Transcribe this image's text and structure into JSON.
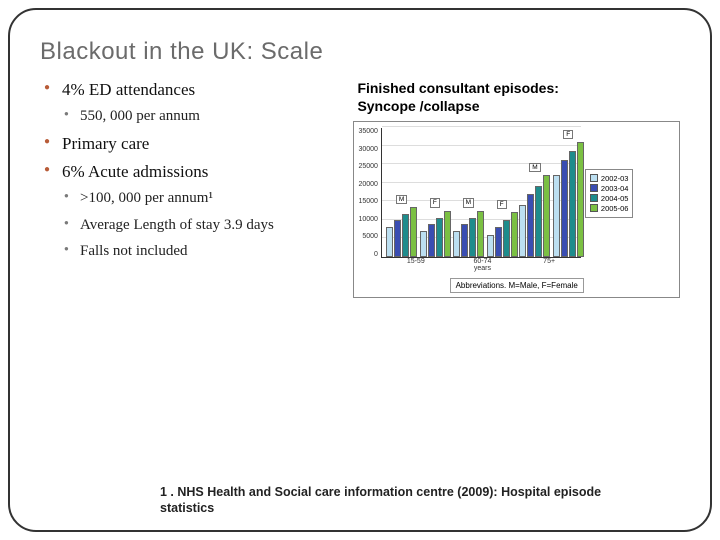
{
  "title": "Blackout in the UK: Scale",
  "bullets": {
    "b1": "4% ED attendances",
    "b1_sub1": "550, 000 per annum",
    "b2": "Primary care",
    "b3": "6% Acute admissions",
    "b3_sub1": ">100, 000 per annum¹",
    "b3_sub2": "Average Length of stay 3.9 days",
    "b3_sub3": "Falls not included"
  },
  "chart": {
    "type": "bar",
    "title_line1": "Finished consultant episodes:",
    "title_line2": "Syncope /collapse",
    "ylim": [
      0,
      35000
    ],
    "ytick_step": 5000,
    "yticks": [
      "0",
      "5000",
      "10000",
      "15000",
      "20000",
      "25000",
      "30000",
      "35000"
    ],
    "x_title": "years",
    "categories": [
      "15-59",
      "60-74",
      "75+"
    ],
    "groups_per_category": [
      "M",
      "F"
    ],
    "series": [
      {
        "label": "2002-03",
        "color": "#bcdff1"
      },
      {
        "label": "2003-04",
        "color": "#3a4db2"
      },
      {
        "label": "2004-05",
        "color": "#1e8c8c"
      },
      {
        "label": "2005-06",
        "color": "#7bc043"
      }
    ],
    "data": {
      "15-59": {
        "M": [
          8000,
          10000,
          11500,
          13500
        ],
        "F": [
          7000,
          9000,
          10500,
          12500
        ]
      },
      "60-74": {
        "M": [
          7000,
          9000,
          10500,
          12500
        ],
        "F": [
          6000,
          8000,
          10000,
          12000
        ]
      },
      "75+": {
        "M": [
          14000,
          17000,
          19000,
          22000
        ],
        "F": [
          22000,
          26000,
          28500,
          31000
        ]
      }
    },
    "grid_color": "#dddddd",
    "axis_color": "#333333",
    "bar_border": "#666666",
    "bg": "#ffffff",
    "tick_fontsize": 7,
    "abbrev": "Abbreviations. M=Male, F=Female"
  },
  "footnote": "1 . NHS Health and Social care information centre (2009): Hospital episode statistics"
}
